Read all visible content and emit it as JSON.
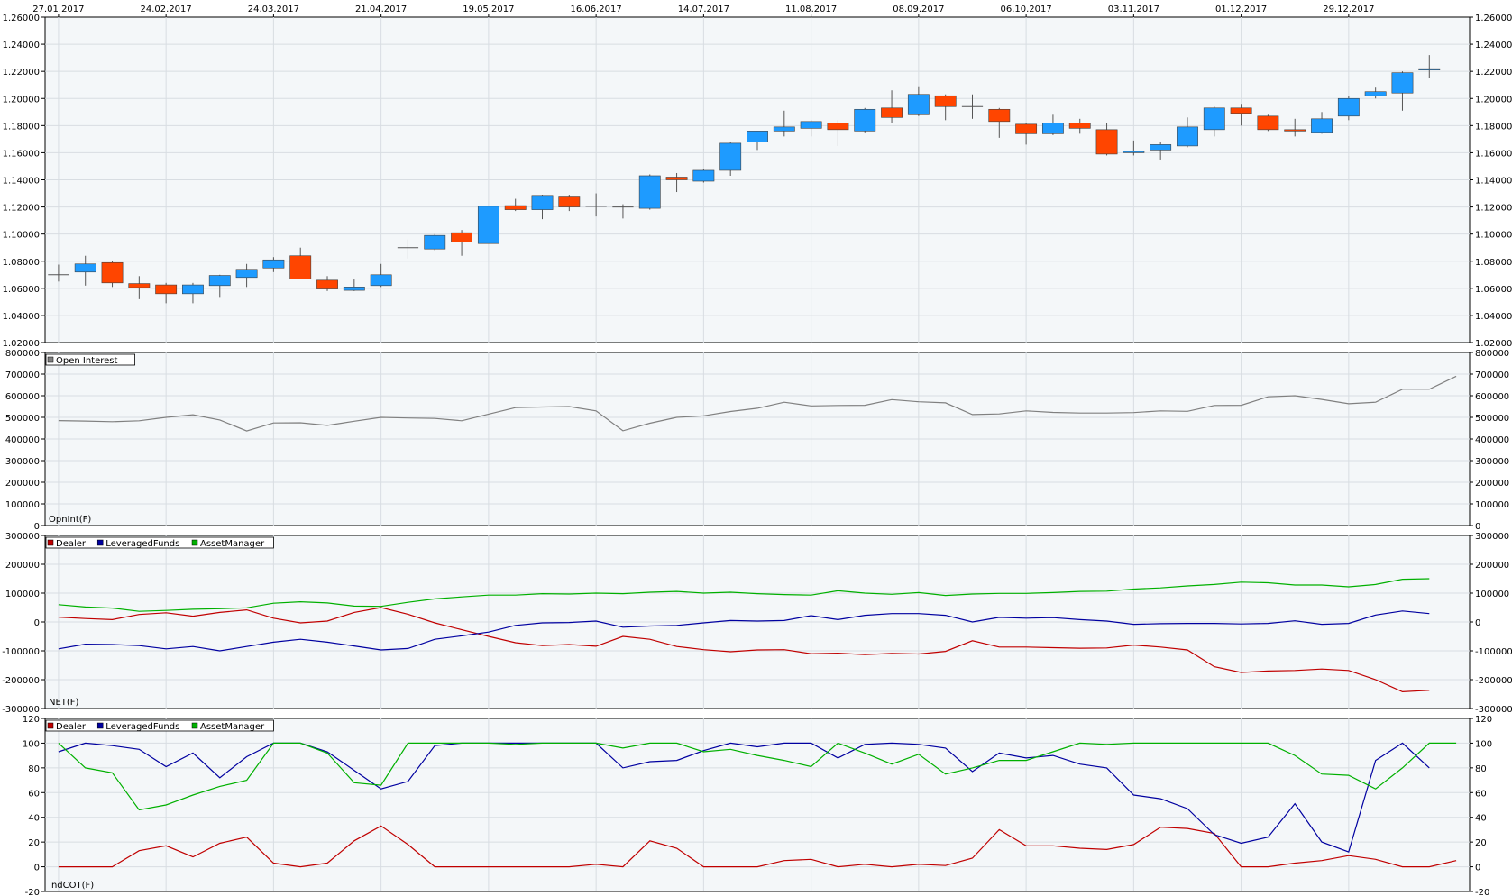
{
  "dates": [
    "27.01.2017",
    "24.02.2017",
    "24.03.2017",
    "21.04.2017",
    "19.05.2017",
    "16.06.2017",
    "14.07.2017",
    "11.08.2017",
    "08.09.2017",
    "06.10.2017",
    "03.11.2017",
    "01.12.2017",
    "29.12.2017"
  ],
  "colors": {
    "up": "#1e9bff",
    "down": "#ff4500",
    "doji": "#808080",
    "open_interest": "#808080",
    "dealer": "#c00000",
    "leveraged": "#0000a0",
    "asset": "#00b000",
    "panel_bg": "#f4f7f9",
    "grid": "#d8dde2"
  },
  "chart_data": [
    {
      "type": "candlestick",
      "ylim": [
        1.02,
        1.26
      ],
      "ticks": [
        "1.02000",
        "1.04000",
        "1.06000",
        "1.08000",
        "1.10000",
        "1.12000",
        "1.14000",
        "1.16000",
        "1.18000",
        "1.20000",
        "1.22000",
        "1.24000",
        "1.26000"
      ],
      "candles": [
        {
          "o": 1.07,
          "h": 1.0775,
          "l": 1.065,
          "c": 1.07
        },
        {
          "o": 1.072,
          "h": 1.084,
          "l": 1.062,
          "c": 1.078
        },
        {
          "o": 1.079,
          "h": 1.08,
          "l": 1.061,
          "c": 1.064
        },
        {
          "o": 1.0635,
          "h": 1.069,
          "l": 1.052,
          "c": 1.0605
        },
        {
          "o": 1.0625,
          "h": 1.064,
          "l": 1.049,
          "c": 1.056
        },
        {
          "o": 1.056,
          "h": 1.064,
          "l": 1.049,
          "c": 1.0625
        },
        {
          "o": 1.062,
          "h": 1.07,
          "l": 1.053,
          "c": 1.0695
        },
        {
          "o": 1.068,
          "h": 1.078,
          "l": 1.061,
          "c": 1.074
        },
        {
          "o": 1.075,
          "h": 1.083,
          "l": 1.072,
          "c": 1.081
        },
        {
          "o": 1.084,
          "h": 1.09,
          "l": 1.067,
          "c": 1.067
        },
        {
          "o": 1.066,
          "h": 1.069,
          "l": 1.058,
          "c": 1.0595
        },
        {
          "o": 1.0585,
          "h": 1.0665,
          "l": 1.058,
          "c": 1.061
        },
        {
          "o": 1.062,
          "h": 1.078,
          "l": 1.061,
          "c": 1.07
        },
        {
          "o": 1.09,
          "h": 1.096,
          "l": 1.082,
          "c": 1.09
        },
        {
          "o": 1.089,
          "h": 1.1,
          "l": 1.088,
          "c": 1.099
        },
        {
          "o": 1.101,
          "h": 1.103,
          "l": 1.084,
          "c": 1.094
        },
        {
          "o": 1.093,
          "h": 1.121,
          "l": 1.093,
          "c": 1.1205
        },
        {
          "o": 1.121,
          "h": 1.126,
          "l": 1.117,
          "c": 1.118
        },
        {
          "o": 1.118,
          "h": 1.129,
          "l": 1.111,
          "c": 1.1285
        },
        {
          "o": 1.128,
          "h": 1.129,
          "l": 1.117,
          "c": 1.12
        },
        {
          "o": 1.1205,
          "h": 1.13,
          "l": 1.113,
          "c": 1.1205
        },
        {
          "o": 1.12,
          "h": 1.122,
          "l": 1.1115,
          "c": 1.12
        },
        {
          "o": 1.119,
          "h": 1.144,
          "l": 1.118,
          "c": 1.143
        },
        {
          "o": 1.142,
          "h": 1.145,
          "l": 1.131,
          "c": 1.14
        },
        {
          "o": 1.139,
          "h": 1.148,
          "l": 1.138,
          "c": 1.147
        },
        {
          "o": 1.147,
          "h": 1.168,
          "l": 1.143,
          "c": 1.167
        },
        {
          "o": 1.168,
          "h": 1.176,
          "l": 1.162,
          "c": 1.176
        },
        {
          "o": 1.176,
          "h": 1.191,
          "l": 1.172,
          "c": 1.179
        },
        {
          "o": 1.178,
          "h": 1.184,
          "l": 1.172,
          "c": 1.183
        },
        {
          "o": 1.182,
          "h": 1.184,
          "l": 1.165,
          "c": 1.177
        },
        {
          "o": 1.176,
          "h": 1.193,
          "l": 1.175,
          "c": 1.192
        },
        {
          "o": 1.193,
          "h": 1.206,
          "l": 1.182,
          "c": 1.186
        },
        {
          "o": 1.188,
          "h": 1.209,
          "l": 1.187,
          "c": 1.203
        },
        {
          "o": 1.202,
          "h": 1.203,
          "l": 1.184,
          "c": 1.194
        },
        {
          "o": 1.194,
          "h": 1.203,
          "l": 1.185,
          "c": 1.194
        },
        {
          "o": 1.192,
          "h": 1.193,
          "l": 1.171,
          "c": 1.183
        },
        {
          "o": 1.181,
          "h": 1.182,
          "l": 1.166,
          "c": 1.174
        },
        {
          "o": 1.174,
          "h": 1.188,
          "l": 1.173,
          "c": 1.182
        },
        {
          "o": 1.182,
          "h": 1.185,
          "l": 1.174,
          "c": 1.178
        },
        {
          "o": 1.177,
          "h": 1.182,
          "l": 1.158,
          "c": 1.159
        },
        {
          "o": 1.16,
          "h": 1.169,
          "l": 1.158,
          "c": 1.161
        },
        {
          "o": 1.162,
          "h": 1.168,
          "l": 1.155,
          "c": 1.166
        },
        {
          "o": 1.165,
          "h": 1.186,
          "l": 1.164,
          "c": 1.179
        },
        {
          "o": 1.177,
          "h": 1.194,
          "l": 1.172,
          "c": 1.193
        },
        {
          "o": 1.193,
          "h": 1.196,
          "l": 1.18,
          "c": 1.189
        },
        {
          "o": 1.187,
          "h": 1.188,
          "l": 1.176,
          "c": 1.177
        },
        {
          "o": 1.177,
          "h": 1.185,
          "l": 1.172,
          "c": 1.176
        },
        {
          "o": 1.175,
          "h": 1.19,
          "l": 1.174,
          "c": 1.185
        },
        {
          "o": 1.187,
          "h": 1.202,
          "l": 1.184,
          "c": 1.2
        },
        {
          "o": 1.202,
          "h": 1.208,
          "l": 1.2,
          "c": 1.205
        },
        {
          "o": 1.204,
          "h": 1.22,
          "l": 1.191,
          "c": 1.219
        },
        {
          "o": 1.221,
          "h": 1.232,
          "l": 1.215,
          "c": 1.222
        }
      ]
    },
    {
      "type": "line",
      "label": "OpnInt(F)",
      "ylim": [
        0,
        800000
      ],
      "ticks": [
        "0",
        "100000",
        "200000",
        "300000",
        "400000",
        "500000",
        "600000",
        "700000",
        "800000"
      ],
      "series": [
        {
          "name": "Open Interest",
          "values": [
            485000,
            483000,
            480000,
            484000,
            500000,
            512000,
            488000,
            437000,
            474000,
            475000,
            463000,
            482000,
            500000,
            497000,
            495000,
            484000,
            515000,
            545000,
            548000,
            550000,
            530000,
            438000,
            473000,
            500000,
            507000,
            527000,
            542000,
            570000,
            553000,
            555000,
            556000,
            582000,
            572000,
            567000,
            513000,
            516000,
            530000,
            523000,
            520000,
            520000,
            522000,
            530000,
            528000,
            555000,
            556000,
            595000,
            600000,
            583000,
            563000,
            570000,
            630000,
            630000,
            690000
          ]
        }
      ]
    },
    {
      "type": "line",
      "label": "NET(F)",
      "ylim": [
        -300000,
        300000
      ],
      "ticks": [
        "-300000",
        "-200000",
        "-100000",
        "0",
        "100000",
        "200000",
        "300000"
      ],
      "series": [
        {
          "name": "Dealer",
          "values": [
            17000,
            12000,
            8000,
            26000,
            32000,
            20000,
            33000,
            42000,
            13000,
            -3000,
            3000,
            33000,
            50000,
            27000,
            -3000,
            -27000,
            -50000,
            -72000,
            -82000,
            -78000,
            -84000,
            -50000,
            -60000,
            -85000,
            -96000,
            -103000,
            -97000,
            -96000,
            -110000,
            -108000,
            -113000,
            -109000,
            -111000,
            -102000,
            -65000,
            -87000,
            -87000,
            -89000,
            -91000,
            -90000,
            -80000,
            -87000,
            -97000,
            -155000,
            -175000,
            -170000,
            -168000,
            -163000,
            -168000,
            -200000,
            -242000,
            -237000
          ]
        },
        {
          "name": "LeveragedFunds",
          "values": [
            -93000,
            -77000,
            -78000,
            -82000,
            -93000,
            -85000,
            -100000,
            -85000,
            -70000,
            -60000,
            -70000,
            -83000,
            -97000,
            -92000,
            -60000,
            -48000,
            -35000,
            -12000,
            -3000,
            -2000,
            3000,
            -18000,
            -14000,
            -12000,
            -3000,
            5000,
            3000,
            5000,
            22000,
            8000,
            23000,
            29000,
            29000,
            23000,
            0,
            16000,
            13000,
            15000,
            8000,
            3000,
            -8000,
            -6000,
            -5000,
            -5000,
            -7000,
            -5000,
            4000,
            -8000,
            -5000,
            24000,
            38000,
            29000
          ]
        },
        {
          "name": "AssetManager",
          "values": [
            60000,
            52000,
            48000,
            37000,
            40000,
            44000,
            46000,
            49000,
            65000,
            70000,
            66000,
            55000,
            54000,
            68000,
            80000,
            87000,
            93000,
            93000,
            98000,
            97000,
            100000,
            98000,
            103000,
            106000,
            100000,
            103000,
            98000,
            95000,
            93000,
            108000,
            100000,
            96000,
            102000,
            92000,
            97000,
            99000,
            99000,
            102000,
            106000,
            107000,
            114000,
            118000,
            125000,
            130000,
            138000,
            136000,
            128000,
            128000,
            122000,
            130000,
            148000,
            150000
          ]
        }
      ]
    },
    {
      "type": "line",
      "label": "IndCOT(F)",
      "ylim": [
        -20,
        120
      ],
      "ticks": [
        "-20",
        "0",
        "20",
        "40",
        "60",
        "80",
        "100",
        "120"
      ],
      "series": [
        {
          "name": "Dealer",
          "values": [
            0,
            0,
            0,
            13,
            17,
            8,
            19,
            24,
            3,
            0,
            3,
            21,
            33,
            18,
            0,
            0,
            0,
            0,
            0,
            0,
            2,
            0,
            21,
            15,
            0,
            0,
            0,
            5,
            6,
            0,
            2,
            0,
            2,
            1,
            7,
            30,
            17,
            17,
            15,
            14,
            18,
            32,
            31,
            27,
            0,
            0,
            3,
            5,
            9,
            6,
            0,
            0,
            5
          ]
        },
        {
          "name": "LeveragedFunds",
          "values": [
            93,
            100,
            98,
            95,
            81,
            92,
            72,
            89,
            100,
            100,
            93,
            78,
            63,
            69,
            98,
            100,
            100,
            100,
            100,
            100,
            100,
            80,
            85,
            86,
            94,
            100,
            97,
            100,
            100,
            88,
            99,
            100,
            99,
            96,
            77,
            92,
            88,
            90,
            83,
            80,
            58,
            55,
            47,
            26,
            19,
            24,
            51,
            20,
            12,
            86,
            100,
            80
          ]
        },
        {
          "name": "AssetManager",
          "values": [
            100,
            80,
            76,
            46,
            50,
            58,
            65,
            70,
            100,
            100,
            92,
            68,
            66,
            100,
            100,
            100,
            100,
            99,
            100,
            100,
            100,
            96,
            100,
            100,
            93,
            95,
            90,
            86,
            81,
            100,
            92,
            83,
            91,
            75,
            80,
            86,
            86,
            93,
            100,
            99,
            100,
            100,
            100,
            100,
            100,
            100,
            90,
            75,
            74,
            63,
            80,
            100,
            100
          ]
        }
      ]
    }
  ]
}
